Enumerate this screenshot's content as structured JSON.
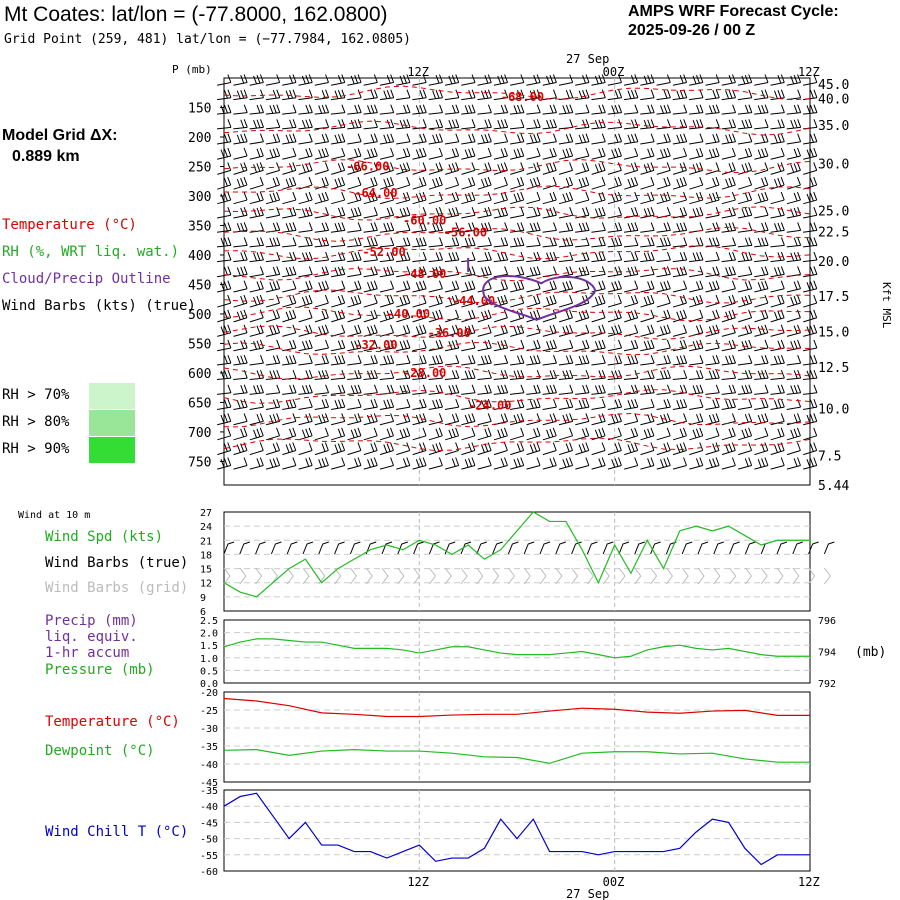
{
  "header": {
    "title": "Mt Coates:  lat/lon = (-77.8000, 162.0800)",
    "grid_point": "Grid Point (259, 481) lat/lon = (−77.7984, 162.0805)",
    "cycle_label": "AMPS WRF Forecast Cycle:",
    "cycle_value": "2025-09-26 / 00  Z"
  },
  "model_grid": {
    "label": "Model Grid ΔX:",
    "value": "0.889 km"
  },
  "legend_top": {
    "temperature": "Temperature (°C)",
    "rh": "RH (%, WRT liq. wat.)",
    "cloud": "Cloud/Precip Outline",
    "wind": "Wind Barbs (kts) (true)"
  },
  "rh_legend": [
    {
      "label": "RH > 70%",
      "color": "#ccf5cc"
    },
    {
      "label": "RH > 80%",
      "color": "#99e699"
    },
    {
      "label": "RH > 90%",
      "color": "#33cc33"
    }
  ],
  "time_axis": {
    "date_label": "27 Sep",
    "ticks": [
      "12Z",
      "00Z",
      "12Z"
    ]
  },
  "colors": {
    "temperature": "#dd0000",
    "green": "#22bb22",
    "purple": "#7030a0",
    "blue": "#0000cc",
    "grid_barbs": "#bbbbbb"
  },
  "chart_data": [
    {
      "type": "line",
      "title": "",
      "xlabel": "",
      "ylabel": "P (mb)",
      "y_right_label": "Kft MSL",
      "x": [
        0,
        6,
        12,
        18,
        24,
        30,
        36
      ],
      "ylim": [
        790,
        100
      ],
      "pressure_ticks": [
        "150",
        "200",
        "250",
        "300",
        "350",
        "400",
        "450",
        "500",
        "550",
        "600",
        "650",
        "700",
        "750"
      ],
      "pressure_tick_values": [
        150,
        200,
        250,
        300,
        350,
        400,
        450,
        500,
        550,
        600,
        650,
        700,
        750
      ],
      "height_ticks": [
        "45.0",
        "40.0",
        "35.0",
        "30.0",
        "25.0",
        "22.5",
        "20.0",
        "17.5",
        "15.0",
        "12.5",
        "10.0",
        "7.5",
        "5.44"
      ],
      "height_tick_pressures": [
        110,
        135,
        180,
        245,
        325,
        360,
        410,
        470,
        530,
        590,
        660,
        740,
        810
      ],
      "temperature_contours": [
        {
          "label": "-68.00",
          "x": 17,
          "p": 132
        },
        {
          "label": "-66.00",
          "x": 7.5,
          "p": 250
        },
        {
          "label": "-64.00",
          "x": 8.0,
          "p": 295
        },
        {
          "label": "-60.00",
          "x": 11.0,
          "p": 342
        },
        {
          "label": "-56.00",
          "x": 13.5,
          "p": 362
        },
        {
          "label": "-52.00",
          "x": 8.5,
          "p": 395
        },
        {
          "label": "-48.00",
          "x": 11.0,
          "p": 432
        },
        {
          "label": "-44.00",
          "x": 14.0,
          "p": 478
        },
        {
          "label": "-40.00",
          "x": 10.0,
          "p": 500
        },
        {
          "label": "-36.00",
          "x": 12.5,
          "p": 532
        },
        {
          "label": "-32.00",
          "x": 8.0,
          "p": 553
        },
        {
          "label": "-28.00",
          "x": 11.0,
          "p": 600
        },
        {
          "label": "-24.00",
          "x": 15.0,
          "p": 655
        }
      ]
    },
    {
      "type": "line",
      "title": "Wind at 10 m",
      "ylim": [
        6,
        27
      ],
      "yticks": [
        "27",
        "24",
        "21",
        "18",
        "15",
        "12",
        "9",
        "6"
      ],
      "ytick_values": [
        27,
        24,
        21,
        18,
        15,
        12,
        9,
        6
      ],
      "series": [
        {
          "name": "Wind Spd (kts)",
          "x": [
            0,
            1,
            2,
            3,
            4,
            5,
            6,
            7,
            8,
            9,
            10,
            11,
            12,
            13,
            14,
            15,
            16,
            17,
            18,
            19,
            20,
            21,
            22,
            23,
            24,
            25,
            26,
            27,
            28,
            29,
            30,
            31,
            32,
            33,
            34,
            35,
            36
          ],
          "values": [
            12,
            10,
            9,
            12,
            15,
            17,
            12,
            15,
            17,
            19,
            20,
            19,
            21,
            20,
            18,
            20,
            17,
            19,
            23,
            27,
            25,
            25,
            19,
            12,
            20,
            14,
            21,
            15,
            23,
            24,
            23,
            24,
            22,
            20,
            21,
            21,
            21
          ]
        }
      ],
      "labels": {
        "barbs_true": "Wind Barbs (true)",
        "barbs_grid": "Wind Barbs (grid)"
      }
    },
    {
      "type": "line",
      "ylim": [
        0,
        2.5
      ],
      "yticks": [
        "2.5",
        "2.0",
        "1.5",
        "1.0",
        "0.5",
        "0.0"
      ],
      "ytick_values": [
        2.5,
        2.0,
        1.5,
        1.0,
        0.5,
        0.0
      ],
      "right_yticks": [
        "796",
        "794",
        "792"
      ],
      "right_ytick_values": [
        796,
        794,
        792
      ],
      "right_ylim": [
        792,
        796
      ],
      "right_unit": "(mb)",
      "labels": {
        "precip": "Precip (mm)",
        "liq": "liq. equiv.",
        "accum": "1-hr accum",
        "pressure": "Pressure (mb)"
      },
      "series": [
        {
          "name": "Pressure (mb)",
          "x": [
            0,
            1,
            2,
            3,
            4,
            5,
            6,
            7,
            8,
            9,
            10,
            11,
            12,
            13,
            14,
            15,
            16,
            17,
            18,
            19,
            20,
            21,
            22,
            23,
            24,
            25,
            26,
            27,
            28,
            29,
            30,
            31,
            32,
            33,
            34,
            35,
            36
          ],
          "values": [
            794.3,
            794.6,
            794.8,
            794.8,
            794.7,
            794.6,
            794.6,
            794.4,
            794.2,
            794.2,
            794.2,
            794.1,
            793.9,
            794.1,
            794.3,
            794.3,
            794.1,
            793.9,
            793.8,
            793.8,
            793.8,
            793.9,
            794.0,
            793.8,
            793.6,
            793.7,
            794.1,
            794.3,
            794.4,
            794.2,
            794.1,
            794.2,
            794.0,
            793.8,
            793.7,
            793.7,
            793.7
          ]
        }
      ]
    },
    {
      "type": "line",
      "ylim": [
        -45,
        -20
      ],
      "yticks": [
        "-20",
        "-25",
        "-30",
        "-35",
        "-40",
        "-45"
      ],
      "ytick_values": [
        -20,
        -25,
        -30,
        -35,
        -40,
        -45
      ],
      "series": [
        {
          "name": "Temperature (°C)",
          "x": [
            0,
            2,
            4,
            6,
            8,
            10,
            12,
            14,
            16,
            18,
            20,
            22,
            24,
            26,
            28,
            30,
            32,
            34,
            36
          ],
          "values": [
            -21.8,
            -22.5,
            -23.8,
            -25.8,
            -26.2,
            -26.8,
            -26.8,
            -26.4,
            -26.2,
            -26.2,
            -25.3,
            -24.5,
            -24.8,
            -25.6,
            -25.9,
            -25.3,
            -25.1,
            -26.5,
            -26.5
          ]
        },
        {
          "name": "Dewpoint (°C)",
          "x": [
            0,
            2,
            4,
            6,
            8,
            10,
            12,
            14,
            16,
            18,
            20,
            22,
            24,
            26,
            28,
            30,
            32,
            34,
            36
          ],
          "values": [
            -36.2,
            -36.0,
            -37.6,
            -36.4,
            -36.0,
            -36.4,
            -36.4,
            -37.0,
            -38.0,
            -38.2,
            -39.8,
            -37.0,
            -36.6,
            -36.6,
            -37.2,
            -37.0,
            -38.6,
            -39.5,
            -39.5
          ]
        }
      ]
    },
    {
      "type": "line",
      "ylim": [
        -60,
        -35
      ],
      "yticks": [
        "-35",
        "-40",
        "-45",
        "-50",
        "-55",
        "-60"
      ],
      "ytick_values": [
        -35,
        -40,
        -45,
        -50,
        -55,
        -60
      ],
      "series": [
        {
          "name": "Wind Chill T (°C)",
          "x": [
            0,
            1,
            2,
            3,
            4,
            5,
            6,
            7,
            8,
            9,
            10,
            11,
            12,
            13,
            14,
            15,
            16,
            17,
            18,
            19,
            20,
            21,
            22,
            23,
            24,
            25,
            26,
            27,
            28,
            29,
            30,
            31,
            32,
            33,
            34,
            35,
            36
          ],
          "values": [
            -40,
            -37,
            -36,
            -43,
            -50,
            -45,
            -52,
            -52,
            -54,
            -54,
            -56,
            -54,
            -52,
            -57,
            -56,
            -56,
            -53,
            -44,
            -50,
            -44,
            -54,
            -54,
            -54,
            -55,
            -54,
            -54,
            -54,
            -54,
            -53,
            -48,
            -44,
            -45,
            -53,
            -58,
            -55,
            -55,
            -55
          ]
        }
      ]
    }
  ]
}
